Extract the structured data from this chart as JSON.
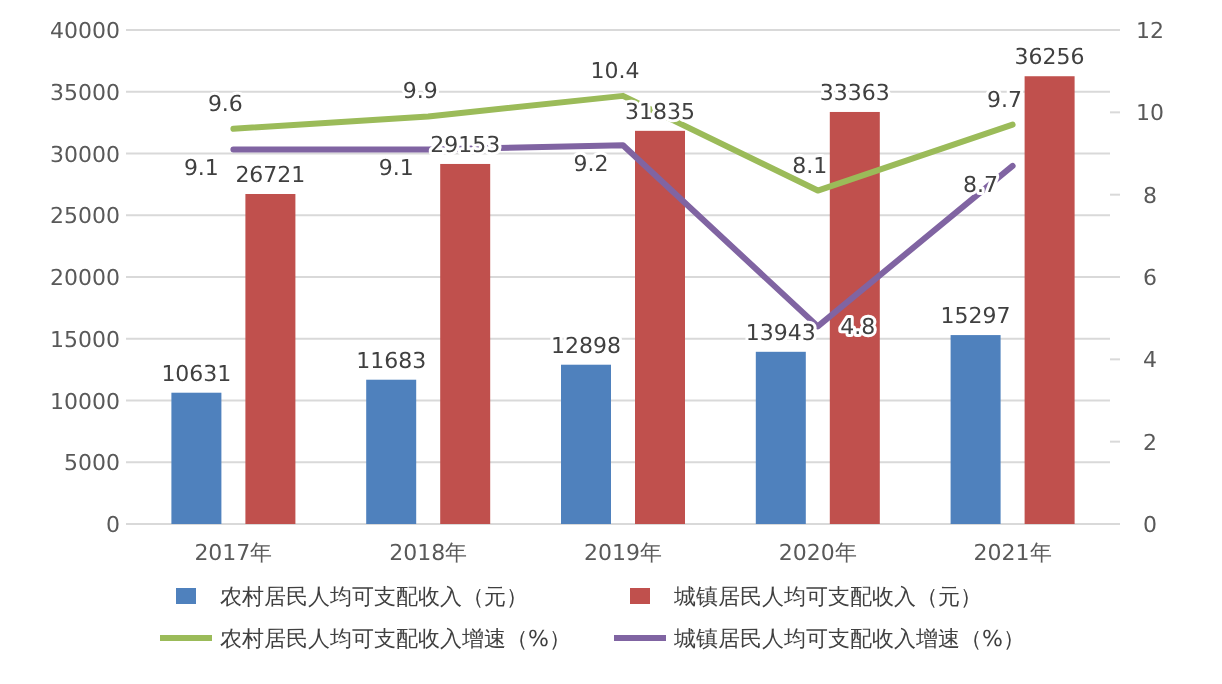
{
  "chart_data": {
    "type": "bar",
    "categories": [
      "2017年",
      "2018年",
      "2019年",
      "2020年",
      "2021年"
    ],
    "series": [
      {
        "name": "农村居民人均可支配收入（元）",
        "color": "#4f81bd",
        "values": [
          10631,
          11683,
          12898,
          13943,
          15297
        ]
      },
      {
        "name": "城镇居民人均可支配收入（元）",
        "color": "#c0504d",
        "values": [
          26721,
          29153,
          31835,
          33363,
          36256
        ]
      },
      {
        "name": "农村居民人均可支配收入增速（%）",
        "color": "#9bbb59",
        "type": "line",
        "axis": "y2",
        "values": [
          9.6,
          9.9,
          10.4,
          8.1,
          9.7
        ]
      },
      {
        "name": "城镇居民人均可支配收入增速（%）",
        "color": "#8064a2",
        "type": "line",
        "axis": "y2",
        "values": [
          9.1,
          9.1,
          9.2,
          4.8,
          8.7
        ]
      }
    ],
    "ylim": [
      0,
      40000
    ],
    "yticks": [
      0,
      5000,
      10000,
      15000,
      20000,
      25000,
      30000,
      35000,
      40000
    ],
    "y2lim": [
      0,
      12
    ],
    "y2ticks": [
      0,
      2,
      4,
      6,
      8,
      10,
      12
    ],
    "grid": "y",
    "legend": "bottom",
    "data_labels": true,
    "marker": "none"
  }
}
